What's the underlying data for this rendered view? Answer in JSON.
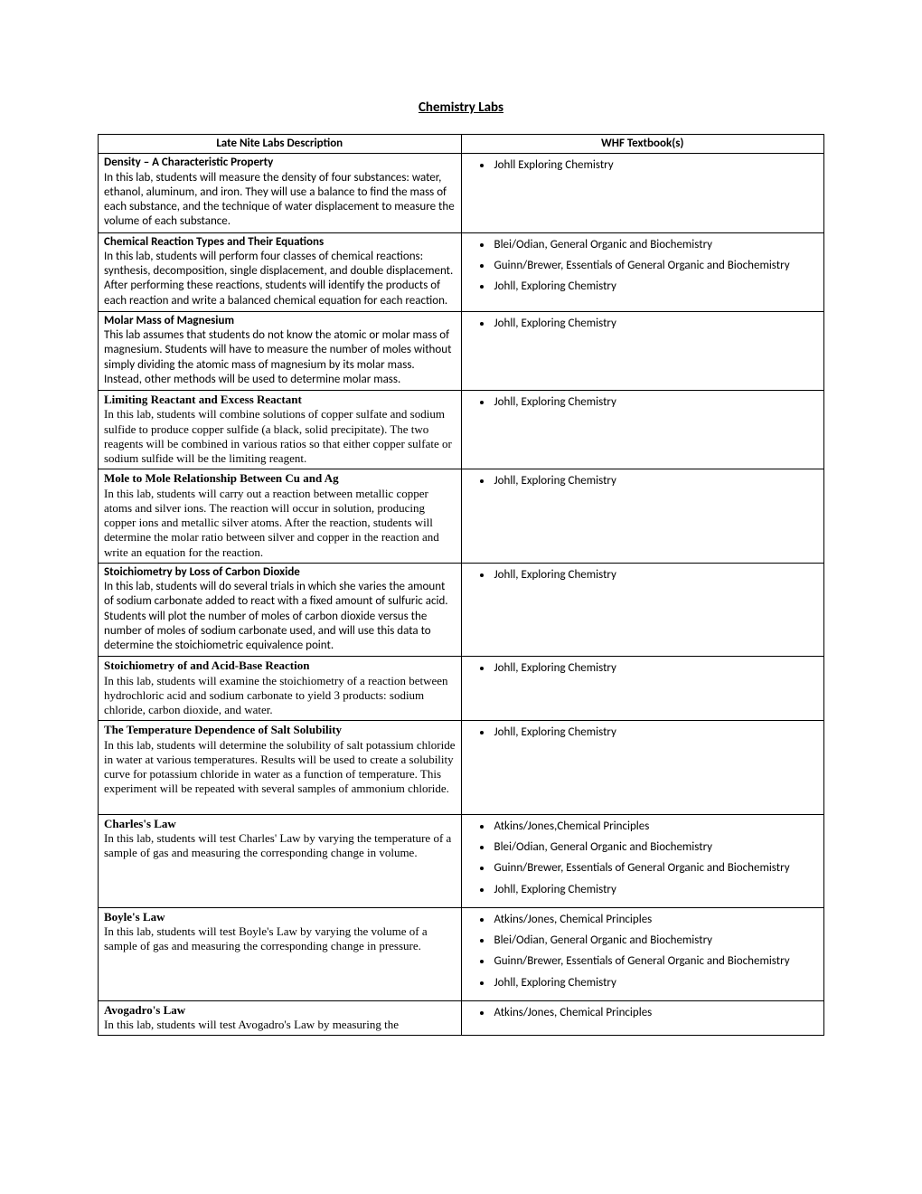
{
  "title": "Chemistry Labs",
  "headers": {
    "col1": "Late Nite Labs Description",
    "col2": "WHF Textbook(s)"
  },
  "rows": [
    {
      "serif": false,
      "lab_title": "Density – A Characteristic Property",
      "desc": "In this lab, students will measure the density of four substances: water, ethanol, aluminum, and iron. They will use a balance to find the mass of each substance, and the technique of water displacement to measure the volume of each substance.",
      "books": [
        "Johll Exploring Chemistry"
      ]
    },
    {
      "serif": false,
      "lab_title": "Chemical Reaction Types and Their Equations",
      "desc": "In this lab, students will perform four classes of chemical reactions: synthesis, decomposition, single displacement, and double displacement. After performing these reactions, students will identify the products of each reaction and write a balanced chemical equation for each reaction.",
      "books": [
        "Blei/Odian, General Organic and Biochemistry",
        "Guinn/Brewer, Essentials of General Organic and Biochemistry",
        "Johll, Exploring Chemistry"
      ]
    },
    {
      "serif": false,
      "lab_title": "Molar Mass of Magnesium",
      "desc": "This lab assumes that students do not know the atomic or molar mass of magnesium. Students will have to measure the number of moles without simply dividing the atomic mass of magnesium by its molar mass. Instead, other methods will be used to determine molar mass.",
      "books": [
        "Johll, Exploring Chemistry"
      ]
    },
    {
      "serif": true,
      "lab_title": "Limiting Reactant and Excess Reactant",
      "desc": "In this lab, students will combine solutions of copper sulfate and sodium sulfide to produce copper sulfide (a black, solid precipitate). The two reagents will be combined in various ratios so that either copper sulfate or sodium sulfide will be the limiting reagent.",
      "books": [
        "Johll, Exploring Chemistry"
      ]
    },
    {
      "serif": true,
      "lab_title": "Mole to Mole Relationship Between Cu and Ag",
      "desc": "In this lab, students will carry out a reaction between metallic copper atoms and silver ions. The reaction will occur in solution, producing copper ions and metallic silver atoms. After the reaction, students will determine the molar ratio between silver and copper in the reaction and write an equation for the reaction.",
      "books": [
        "Johll, Exploring Chemistry"
      ]
    },
    {
      "serif": false,
      "lab_title": "Stoichiometry by Loss of Carbon Dioxide",
      "desc": "In this lab, students will do several trials in which she varies the amount of sodium carbonate added to react with a fixed amount of sulfuric acid. Students will plot the number of moles of carbon dioxide versus the number of moles of sodium carbonate used, and will use this data to determine the stoichiometric equivalence point.",
      "books": [
        "Johll, Exploring Chemistry"
      ]
    },
    {
      "serif": true,
      "lab_title": "Stoichiometry of and Acid-Base Reaction",
      "desc": "In this lab, students will examine the stoichiometry of a reaction between hydrochloric acid and sodium carbonate to yield 3 products: sodium chloride, carbon dioxide, and water.",
      "books": [
        "Johll, Exploring Chemistry"
      ]
    },
    {
      "serif": true,
      "lab_title": "The Temperature Dependence of Salt Solubility",
      "desc": "In this lab, students will determine the solubility of salt potassium chloride in water at various temperatures. Results will be used to create a solubility curve for potassium chloride in water as a function of temperature. This experiment will be repeated with several samples of ammonium chloride.",
      "pad_after": true,
      "books": [
        "Johll, Exploring Chemistry"
      ]
    },
    {
      "serif": true,
      "lab_title": "Charles's Law",
      "desc": "In this lab, students will test Charles' Law by varying the temperature of a sample of gas and measuring the corresponding change in volume.",
      "books": [
        "Atkins/Jones,Chemical Principles",
        "Blei/Odian, General Organic and Biochemistry",
        "Guinn/Brewer, Essentials of General Organic and Biochemistry",
        "Johll, Exploring Chemistry"
      ]
    },
    {
      "serif": true,
      "lab_title": "Boyle's Law",
      "desc": "In this lab, students will test Boyle's Law by varying the volume of a sample of gas and measuring the corresponding change in pressure.",
      "books": [
        "Atkins/Jones, Chemical Principles",
        "Blei/Odian, General Organic and Biochemistry",
        "Guinn/Brewer, Essentials of General Organic and Biochemistry",
        "Johll, Exploring Chemistry"
      ]
    },
    {
      "serif": true,
      "lab_title": "Avogadro's Law",
      "desc": "In this lab, students will test Avogadro's Law by measuring the",
      "books": [
        "Atkins/Jones, Chemical Principles"
      ]
    }
  ]
}
